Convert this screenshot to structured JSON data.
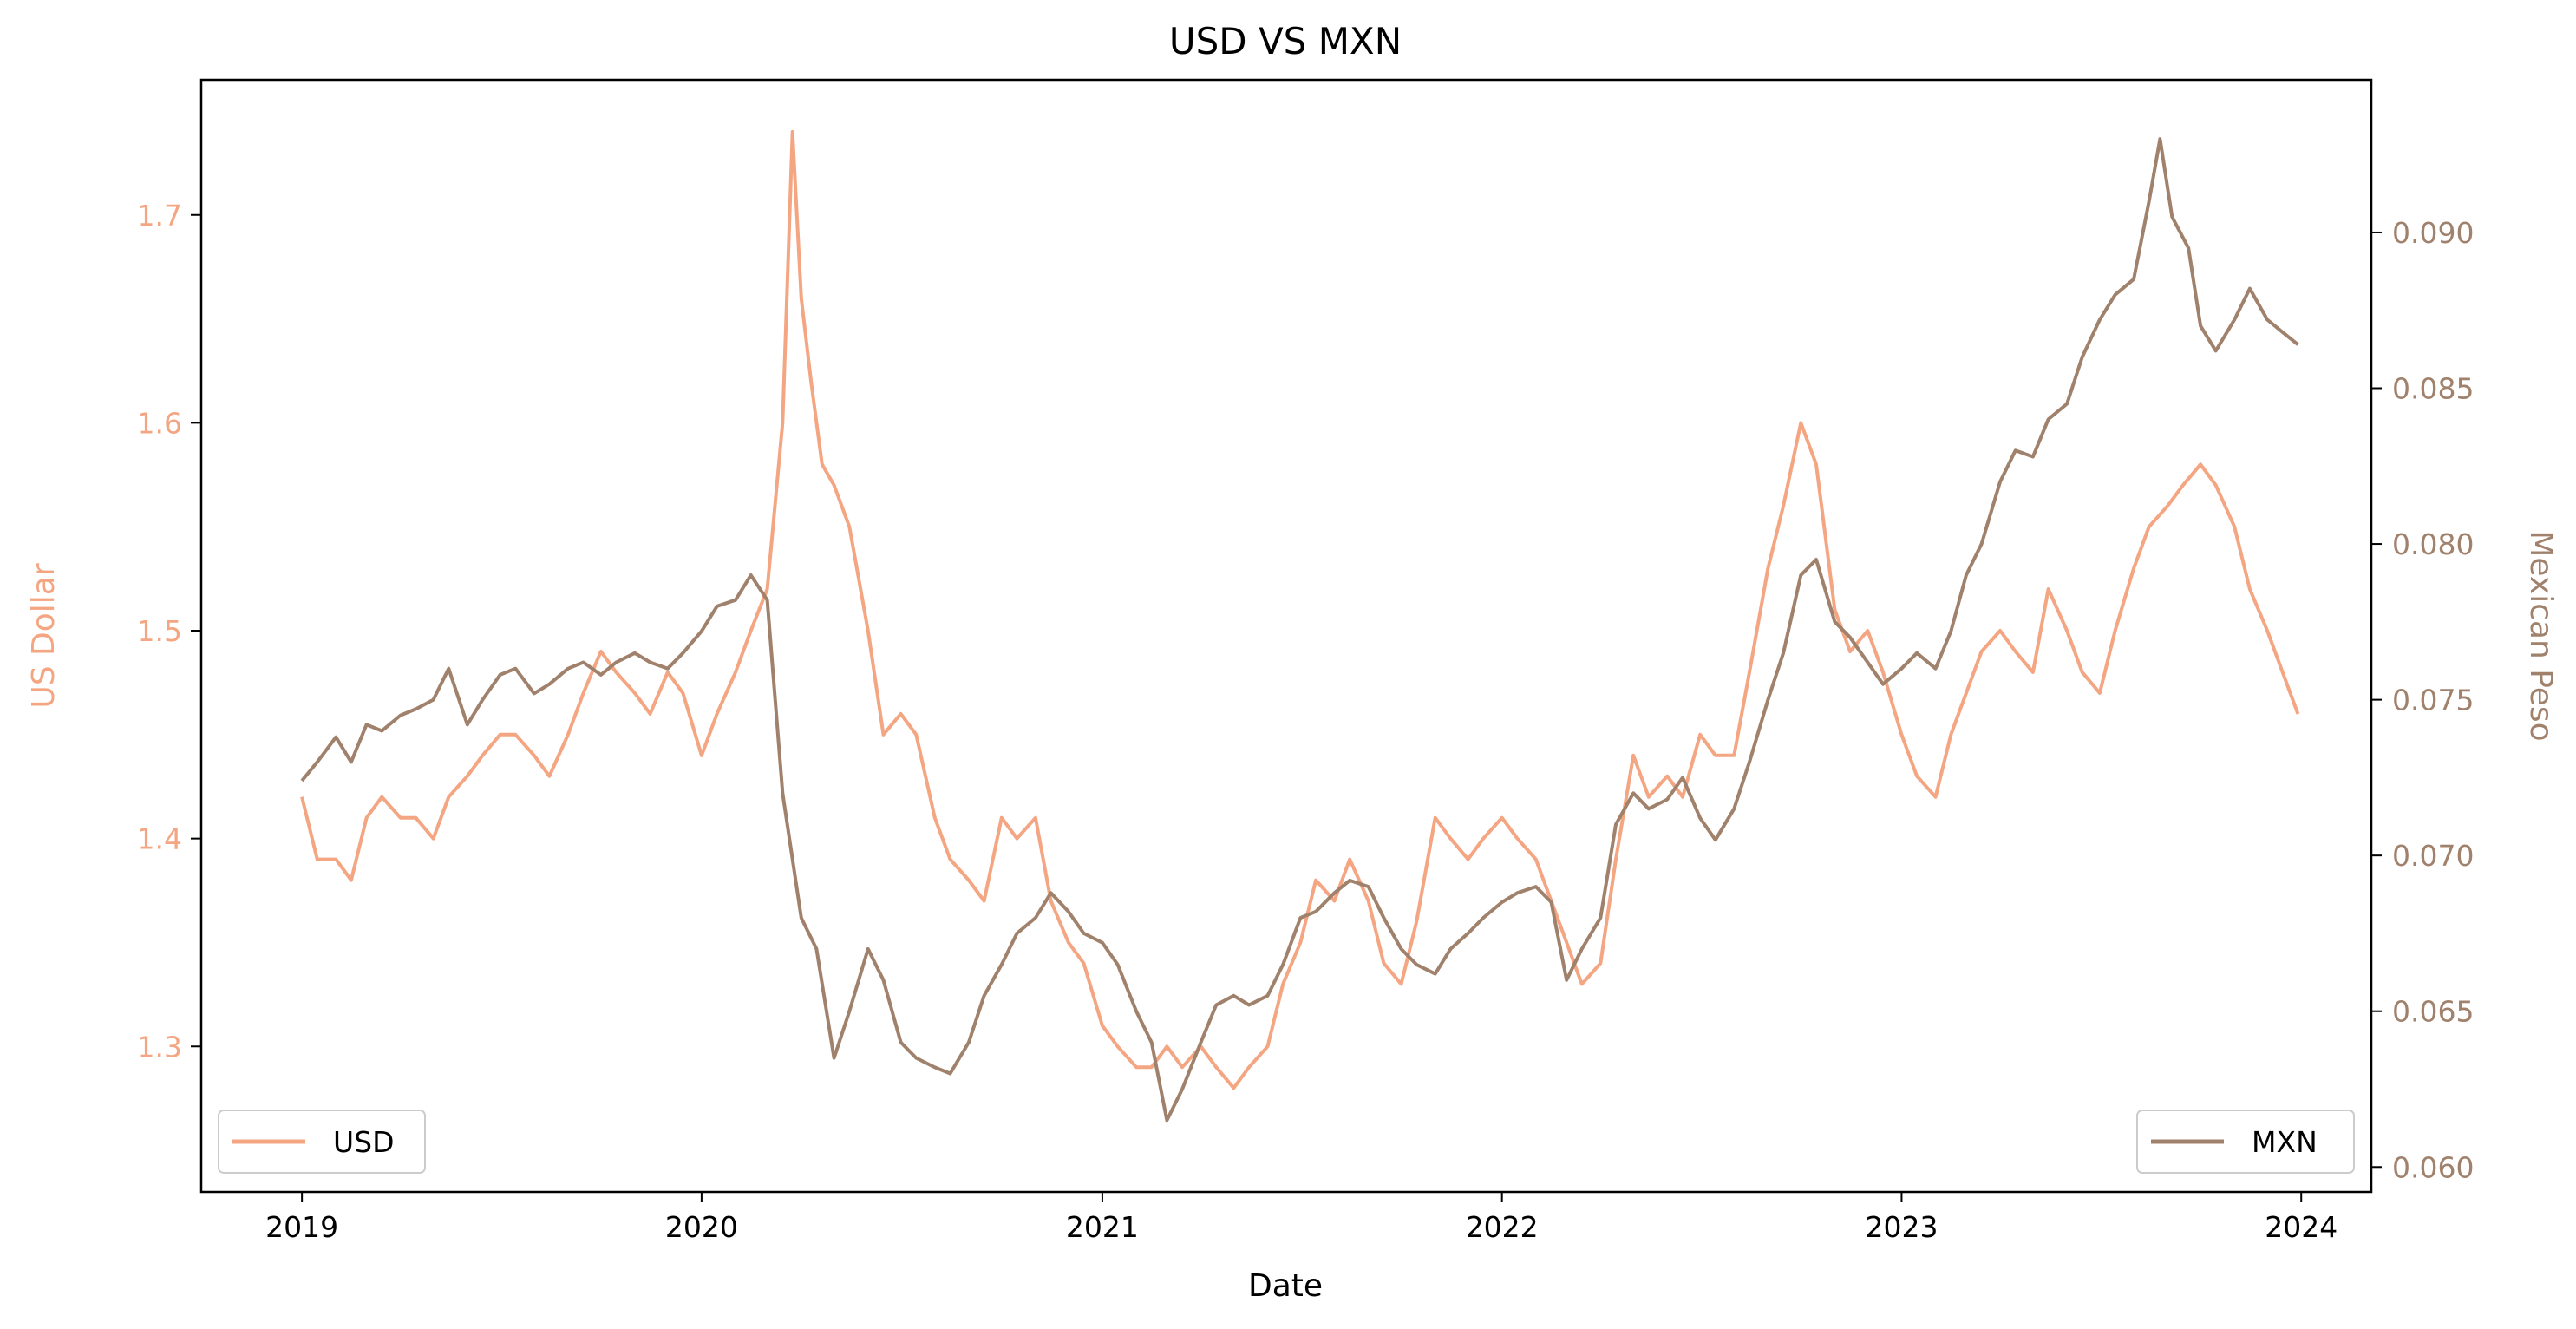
{
  "chart_data": {
    "type": "line",
    "title": "USD VS MXN",
    "xlabel": "Date",
    "ylabel_left": "US Dollar",
    "ylabel_right": "Mexican Peso",
    "xlim": [
      "2018-10-01",
      "2024-03-05"
    ],
    "ylim_left": [
      1.23,
      1.765
    ],
    "ylim_right": [
      0.0592,
      0.0949
    ],
    "x_ticks": [
      "2019",
      "2020",
      "2021",
      "2022",
      "2023",
      "2024"
    ],
    "y_ticks_left": [
      "1.3",
      "1.4",
      "1.5",
      "1.6",
      "1.7"
    ],
    "y_ticks_right": [
      "0.060",
      "0.065",
      "0.070",
      "0.075",
      "0.080",
      "0.085",
      "0.090"
    ],
    "grid": false,
    "colors": {
      "usd": "#f4a582",
      "mxn": "#a0816c"
    },
    "series": [
      {
        "name": "USD",
        "axis": "left",
        "legend_position": "lower-left",
        "points": [
          [
            "2019-01-01",
            1.42
          ],
          [
            "2019-01-15",
            1.39
          ],
          [
            "2019-02-01",
            1.39
          ],
          [
            "2019-02-15",
            1.38
          ],
          [
            "2019-03-01",
            1.41
          ],
          [
            "2019-03-15",
            1.42
          ],
          [
            "2019-04-01",
            1.41
          ],
          [
            "2019-04-15",
            1.41
          ],
          [
            "2019-05-01",
            1.4
          ],
          [
            "2019-05-15",
            1.42
          ],
          [
            "2019-06-01",
            1.43
          ],
          [
            "2019-06-15",
            1.44
          ],
          [
            "2019-07-01",
            1.45
          ],
          [
            "2019-07-15",
            1.45
          ],
          [
            "2019-08-01",
            1.44
          ],
          [
            "2019-08-15",
            1.43
          ],
          [
            "2019-09-01",
            1.45
          ],
          [
            "2019-09-15",
            1.47
          ],
          [
            "2019-10-01",
            1.49
          ],
          [
            "2019-10-15",
            1.48
          ],
          [
            "2019-11-01",
            1.47
          ],
          [
            "2019-11-15",
            1.46
          ],
          [
            "2019-12-01",
            1.48
          ],
          [
            "2019-12-15",
            1.47
          ],
          [
            "2020-01-01",
            1.44
          ],
          [
            "2020-01-15",
            1.46
          ],
          [
            "2020-02-01",
            1.48
          ],
          [
            "2020-02-15",
            1.5
          ],
          [
            "2020-03-01",
            1.52
          ],
          [
            "2020-03-15",
            1.6
          ],
          [
            "2020-03-24",
            1.74
          ],
          [
            "2020-04-01",
            1.66
          ],
          [
            "2020-04-10",
            1.62
          ],
          [
            "2020-04-20",
            1.58
          ],
          [
            "2020-05-01",
            1.57
          ],
          [
            "2020-05-15",
            1.55
          ],
          [
            "2020-06-01",
            1.5
          ],
          [
            "2020-06-15",
            1.45
          ],
          [
            "2020-07-01",
            1.46
          ],
          [
            "2020-07-15",
            1.45
          ],
          [
            "2020-08-01",
            1.41
          ],
          [
            "2020-08-15",
            1.39
          ],
          [
            "2020-09-01",
            1.38
          ],
          [
            "2020-09-15",
            1.37
          ],
          [
            "2020-10-01",
            1.41
          ],
          [
            "2020-10-15",
            1.4
          ],
          [
            "2020-11-01",
            1.41
          ],
          [
            "2020-11-15",
            1.37
          ],
          [
            "2020-12-01",
            1.35
          ],
          [
            "2020-12-15",
            1.34
          ],
          [
            "2021-01-01",
            1.31
          ],
          [
            "2021-01-15",
            1.3
          ],
          [
            "2021-02-01",
            1.29
          ],
          [
            "2021-02-15",
            1.29
          ],
          [
            "2021-03-01",
            1.3
          ],
          [
            "2021-03-15",
            1.29
          ],
          [
            "2021-04-01",
            1.3
          ],
          [
            "2021-04-15",
            1.29
          ],
          [
            "2021-05-01",
            1.28
          ],
          [
            "2021-05-15",
            1.29
          ],
          [
            "2021-06-01",
            1.3
          ],
          [
            "2021-06-15",
            1.33
          ],
          [
            "2021-07-01",
            1.35
          ],
          [
            "2021-07-15",
            1.38
          ],
          [
            "2021-08-01",
            1.37
          ],
          [
            "2021-08-15",
            1.39
          ],
          [
            "2021-09-01",
            1.37
          ],
          [
            "2021-09-15",
            1.34
          ],
          [
            "2021-10-01",
            1.33
          ],
          [
            "2021-10-15",
            1.36
          ],
          [
            "2021-11-01",
            1.41
          ],
          [
            "2021-11-15",
            1.4
          ],
          [
            "2021-12-01",
            1.39
          ],
          [
            "2021-12-15",
            1.4
          ],
          [
            "2022-01-01",
            1.41
          ],
          [
            "2022-01-15",
            1.4
          ],
          [
            "2022-02-01",
            1.39
          ],
          [
            "2022-02-15",
            1.37
          ],
          [
            "2022-03-01",
            1.35
          ],
          [
            "2022-03-15",
            1.33
          ],
          [
            "2022-04-01",
            1.34
          ],
          [
            "2022-04-15",
            1.39
          ],
          [
            "2022-05-01",
            1.44
          ],
          [
            "2022-05-15",
            1.42
          ],
          [
            "2022-06-01",
            1.43
          ],
          [
            "2022-06-15",
            1.42
          ],
          [
            "2022-07-01",
            1.45
          ],
          [
            "2022-07-15",
            1.44
          ],
          [
            "2022-08-01",
            1.44
          ],
          [
            "2022-08-15",
            1.48
          ],
          [
            "2022-09-01",
            1.53
          ],
          [
            "2022-09-15",
            1.56
          ],
          [
            "2022-10-01",
            1.6
          ],
          [
            "2022-10-15",
            1.58
          ],
          [
            "2022-11-01",
            1.51
          ],
          [
            "2022-11-15",
            1.49
          ],
          [
            "2022-12-01",
            1.5
          ],
          [
            "2022-12-15",
            1.48
          ],
          [
            "2023-01-01",
            1.45
          ],
          [
            "2023-01-15",
            1.43
          ],
          [
            "2023-02-01",
            1.42
          ],
          [
            "2023-02-15",
            1.45
          ],
          [
            "2023-03-01",
            1.47
          ],
          [
            "2023-03-15",
            1.49
          ],
          [
            "2023-04-01",
            1.5
          ],
          [
            "2023-04-15",
            1.49
          ],
          [
            "2023-05-01",
            1.48
          ],
          [
            "2023-05-15",
            1.52
          ],
          [
            "2023-06-01",
            1.5
          ],
          [
            "2023-06-15",
            1.48
          ],
          [
            "2023-07-01",
            1.47
          ],
          [
            "2023-07-15",
            1.5
          ],
          [
            "2023-08-01",
            1.53
          ],
          [
            "2023-08-15",
            1.55
          ],
          [
            "2023-09-01",
            1.56
          ],
          [
            "2023-09-15",
            1.57
          ],
          [
            "2023-10-01",
            1.58
          ],
          [
            "2023-10-15",
            1.57
          ],
          [
            "2023-11-01",
            1.55
          ],
          [
            "2023-11-15",
            1.52
          ],
          [
            "2023-12-01",
            1.5
          ],
          [
            "2023-12-15",
            1.48
          ],
          [
            "2023-12-29",
            1.46
          ]
        ]
      },
      {
        "name": "MXN",
        "axis": "right",
        "legend_position": "lower-right",
        "points": [
          [
            "2019-01-01",
            0.0724
          ],
          [
            "2019-01-15",
            0.073
          ],
          [
            "2019-02-01",
            0.0738
          ],
          [
            "2019-02-15",
            0.073
          ],
          [
            "2019-03-01",
            0.0742
          ],
          [
            "2019-03-15",
            0.074
          ],
          [
            "2019-04-01",
            0.0745
          ],
          [
            "2019-04-15",
            0.0747
          ],
          [
            "2019-05-01",
            0.075
          ],
          [
            "2019-05-15",
            0.076
          ],
          [
            "2019-06-01",
            0.0742
          ],
          [
            "2019-06-15",
            0.075
          ],
          [
            "2019-07-01",
            0.0758
          ],
          [
            "2019-07-15",
            0.076
          ],
          [
            "2019-08-01",
            0.0752
          ],
          [
            "2019-08-15",
            0.0755
          ],
          [
            "2019-09-01",
            0.076
          ],
          [
            "2019-09-15",
            0.0762
          ],
          [
            "2019-10-01",
            0.0758
          ],
          [
            "2019-10-15",
            0.0762
          ],
          [
            "2019-11-01",
            0.0765
          ],
          [
            "2019-11-15",
            0.0762
          ],
          [
            "2019-12-01",
            0.076
          ],
          [
            "2019-12-15",
            0.0765
          ],
          [
            "2020-01-01",
            0.0772
          ],
          [
            "2020-01-15",
            0.078
          ],
          [
            "2020-02-01",
            0.0782
          ],
          [
            "2020-02-15",
            0.079
          ],
          [
            "2020-03-01",
            0.0782
          ],
          [
            "2020-03-15",
            0.072
          ],
          [
            "2020-04-01",
            0.068
          ],
          [
            "2020-04-15",
            0.067
          ],
          [
            "2020-05-01",
            0.0635
          ],
          [
            "2020-05-15",
            0.065
          ],
          [
            "2020-06-01",
            0.067
          ],
          [
            "2020-06-15",
            0.066
          ],
          [
            "2020-07-01",
            0.064
          ],
          [
            "2020-07-15",
            0.0635
          ],
          [
            "2020-08-01",
            0.0632
          ],
          [
            "2020-08-15",
            0.063
          ],
          [
            "2020-09-01",
            0.064
          ],
          [
            "2020-09-15",
            0.0655
          ],
          [
            "2020-10-01",
            0.0665
          ],
          [
            "2020-10-15",
            0.0675
          ],
          [
            "2020-11-01",
            0.068
          ],
          [
            "2020-11-15",
            0.0688
          ],
          [
            "2020-12-01",
            0.0682
          ],
          [
            "2020-12-15",
            0.0675
          ],
          [
            "2021-01-01",
            0.0672
          ],
          [
            "2021-01-15",
            0.0665
          ],
          [
            "2021-02-01",
            0.065
          ],
          [
            "2021-02-15",
            0.064
          ],
          [
            "2021-03-01",
            0.0615
          ],
          [
            "2021-03-15",
            0.0625
          ],
          [
            "2021-04-01",
            0.064
          ],
          [
            "2021-04-15",
            0.0652
          ],
          [
            "2021-05-01",
            0.0655
          ],
          [
            "2021-05-15",
            0.0652
          ],
          [
            "2021-06-01",
            0.0655
          ],
          [
            "2021-06-15",
            0.0665
          ],
          [
            "2021-07-01",
            0.068
          ],
          [
            "2021-07-15",
            0.0682
          ],
          [
            "2021-08-01",
            0.0688
          ],
          [
            "2021-08-15",
            0.0692
          ],
          [
            "2021-09-01",
            0.069
          ],
          [
            "2021-09-15",
            0.068
          ],
          [
            "2021-10-01",
            0.067
          ],
          [
            "2021-10-15",
            0.0665
          ],
          [
            "2021-11-01",
            0.0662
          ],
          [
            "2021-11-15",
            0.067
          ],
          [
            "2021-12-01",
            0.0675
          ],
          [
            "2021-12-15",
            0.068
          ],
          [
            "2022-01-01",
            0.0685
          ],
          [
            "2022-01-15",
            0.0688
          ],
          [
            "2022-02-01",
            0.069
          ],
          [
            "2022-02-15",
            0.0685
          ],
          [
            "2022-03-01",
            0.066
          ],
          [
            "2022-03-15",
            0.067
          ],
          [
            "2022-04-01",
            0.068
          ],
          [
            "2022-04-15",
            0.071
          ],
          [
            "2022-05-01",
            0.072
          ],
          [
            "2022-05-15",
            0.0715
          ],
          [
            "2022-06-01",
            0.0718
          ],
          [
            "2022-06-15",
            0.0725
          ],
          [
            "2022-07-01",
            0.0712
          ],
          [
            "2022-07-15",
            0.0705
          ],
          [
            "2022-08-01",
            0.0715
          ],
          [
            "2022-08-15",
            0.073
          ],
          [
            "2022-09-01",
            0.075
          ],
          [
            "2022-09-15",
            0.0765
          ],
          [
            "2022-10-01",
            0.079
          ],
          [
            "2022-10-15",
            0.0795
          ],
          [
            "2022-11-01",
            0.0775
          ],
          [
            "2022-11-15",
            0.077
          ],
          [
            "2022-12-01",
            0.0762
          ],
          [
            "2022-12-15",
            0.0755
          ],
          [
            "2023-01-01",
            0.076
          ],
          [
            "2023-01-15",
            0.0765
          ],
          [
            "2023-02-01",
            0.076
          ],
          [
            "2023-02-15",
            0.0772
          ],
          [
            "2023-03-01",
            0.079
          ],
          [
            "2023-03-15",
            0.08
          ],
          [
            "2023-04-01",
            0.082
          ],
          [
            "2023-04-15",
            0.083
          ],
          [
            "2023-05-01",
            0.0828
          ],
          [
            "2023-05-15",
            0.084
          ],
          [
            "2023-06-01",
            0.0845
          ],
          [
            "2023-06-15",
            0.086
          ],
          [
            "2023-07-01",
            0.0872
          ],
          [
            "2023-07-15",
            0.088
          ],
          [
            "2023-08-01",
            0.0885
          ],
          [
            "2023-08-15",
            0.091
          ],
          [
            "2023-08-25",
            0.093
          ],
          [
            "2023-09-05",
            0.0905
          ],
          [
            "2023-09-20",
            0.0895
          ],
          [
            "2023-10-01",
            0.087
          ],
          [
            "2023-10-15",
            0.0862
          ],
          [
            "2023-11-01",
            0.0872
          ],
          [
            "2023-11-15",
            0.0882
          ],
          [
            "2023-12-01",
            0.0872
          ],
          [
            "2023-12-15",
            0.0868
          ],
          [
            "2023-12-29",
            0.0864
          ]
        ]
      }
    ]
  }
}
